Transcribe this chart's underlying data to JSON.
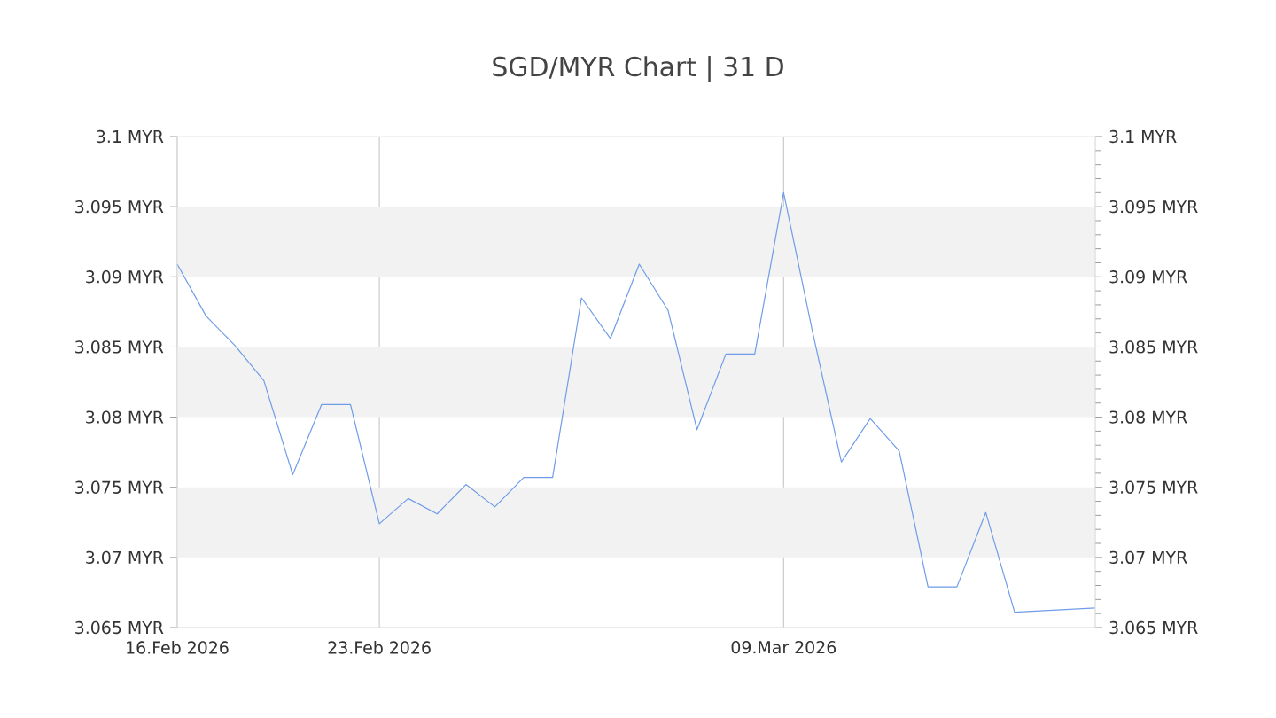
{
  "chart_data": {
    "type": "line",
    "title": "SGD/MYR Chart | 31 D",
    "x": [
      "2026-02-16",
      "2026-02-17",
      "2026-02-18",
      "2026-02-19",
      "2026-02-20",
      "2026-02-21",
      "2026-02-22",
      "2026-02-23",
      "2026-02-24",
      "2026-02-25",
      "2026-02-26",
      "2026-02-27",
      "2026-02-28",
      "2026-03-01",
      "2026-03-02",
      "2026-03-03",
      "2026-03-04",
      "2026-03-05",
      "2026-03-06",
      "2026-03-07",
      "2026-03-08",
      "2026-03-09",
      "2026-03-10",
      "2026-03-11",
      "2026-03-12",
      "2026-03-13",
      "2026-03-14",
      "2026-03-15",
      "2026-03-16",
      "2026-03-17",
      "2026-03-19T19:00"
    ],
    "series": [
      {
        "color": "#6f9ce8",
        "values": [
          3.0909,
          3.0872,
          3.0851,
          3.0826,
          3.0759,
          3.0809,
          3.0809,
          3.0724,
          3.0742,
          3.0731,
          3.0752,
          3.0736,
          3.0757,
          3.0757,
          3.0885,
          3.0856,
          3.0909,
          3.0876,
          3.0791,
          3.0845,
          3.0845,
          3.096,
          3.0861,
          3.0768,
          3.0799,
          3.0776,
          3.0679,
          3.0679,
          3.0732,
          3.0661,
          3.0664
        ]
      }
    ],
    "xlim": [
      "2026-02-16",
      "2026-03-19T19:00"
    ],
    "xticks": [
      {
        "value": "2026-02-16",
        "label": "16.Feb 2026"
      },
      {
        "value": "2026-02-23",
        "label": "23.Feb 2026"
      },
      {
        "value": "2026-03-09",
        "label": "09.Mar 2026"
      }
    ],
    "ylim": [
      3.065,
      3.1
    ],
    "yticks": [
      {
        "value": 3.065,
        "label": "3.065 MYR"
      },
      {
        "value": 3.07,
        "label": "3.07 MYR"
      },
      {
        "value": 3.075,
        "label": "3.075 MYR"
      },
      {
        "value": 3.08,
        "label": "3.08 MYR"
      },
      {
        "value": 3.085,
        "label": "3.085 MYR"
      },
      {
        "value": 3.09,
        "label": "3.09 MYR"
      },
      {
        "value": 3.095,
        "label": "3.095 MYR"
      },
      {
        "value": 3.1,
        "label": "3.1 MYR"
      }
    ],
    "y2lim": [
      3.065,
      3.1
    ],
    "y2ticks": [
      {
        "value": 3.065,
        "label": "3.065 MYR"
      },
      {
        "value": 3.07,
        "label": "3.07 MYR"
      },
      {
        "value": 3.075,
        "label": "3.075 MYR"
      },
      {
        "value": 3.08,
        "label": "3.08 MYR"
      },
      {
        "value": 3.085,
        "label": "3.085 MYR"
      },
      {
        "value": 3.09,
        "label": "3.09 MYR"
      },
      {
        "value": 3.095,
        "label": "3.095 MYR"
      },
      {
        "value": 3.1,
        "label": "3.1 MYR"
      }
    ],
    "bands": [
      {
        "axis": "y",
        "from": 3.07,
        "to": 3.075,
        "color": "#f2f2f2"
      },
      {
        "axis": "y",
        "from": 3.08,
        "to": 3.085,
        "color": "#f2f2f2"
      },
      {
        "axis": "y",
        "from": 3.09,
        "to": 3.095,
        "color": "#f2f2f2"
      }
    ],
    "grid": "x",
    "marker": "none",
    "line_style": "solid"
  }
}
